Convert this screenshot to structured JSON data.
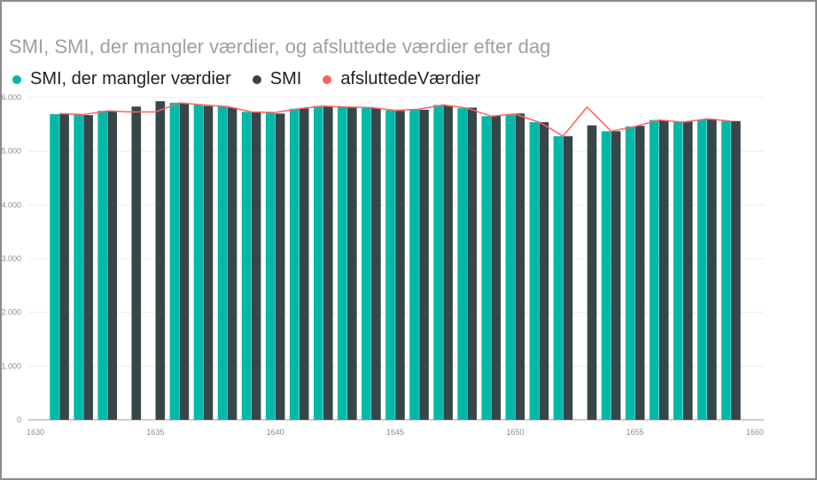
{
  "chart_data": {
    "type": "bar",
    "title": "SMI, SMI, der mangler værdier, og afsluttede værdier efter dag",
    "x": [
      1631,
      1632,
      1633,
      1634,
      1635,
      1636,
      1637,
      1638,
      1639,
      1640,
      1641,
      1642,
      1643,
      1644,
      1645,
      1646,
      1647,
      1648,
      1649,
      1650,
      1651,
      1652,
      1653,
      1654,
      1655,
      1656,
      1657,
      1658,
      1659
    ],
    "x_ticks": [
      "1630",
      "1635",
      "1640",
      "1645",
      "1650",
      "1655",
      "1660"
    ],
    "x_tick_values": [
      1630,
      1635,
      1640,
      1645,
      1650,
      1655,
      1660
    ],
    "y_ticks": [
      "0",
      "1.000",
      "2.000",
      "3.000",
      "4.000",
      "5.000",
      "6.000"
    ],
    "y_tick_values": [
      0,
      1000,
      2000,
      3000,
      4000,
      5000,
      6000
    ],
    "ylim": [
      0,
      6000
    ],
    "xlim": [
      1630,
      1660
    ],
    "series": [
      {
        "name": "SMI, der mangler værdier",
        "type": "bar",
        "color": "#01B8AA",
        "values": [
          5690,
          5680,
          5750,
          null,
          null,
          5900,
          5860,
          5830,
          5730,
          5720,
          5790,
          5840,
          5820,
          5810,
          5760,
          5780,
          5860,
          5800,
          5650,
          5690,
          5540,
          5280,
          null,
          5370,
          5460,
          5580,
          5540,
          5590,
          5560
        ]
      },
      {
        "name": "SMI",
        "type": "bar",
        "color": "#374649",
        "values": [
          5700,
          5670,
          5740,
          5830,
          5930,
          5890,
          5840,
          5810,
          5720,
          5700,
          5800,
          5830,
          5820,
          5800,
          5750,
          5770,
          5850,
          5810,
          5660,
          5700,
          5540,
          5280,
          5480,
          5370,
          5470,
          5580,
          5550,
          5600,
          5560
        ]
      },
      {
        "name": "afsluttedeVærdier",
        "type": "line",
        "color": "#FD625E",
        "values": [
          5700,
          5680,
          5750,
          5730,
          5730,
          5900,
          5860,
          5830,
          5730,
          5720,
          5790,
          5840,
          5820,
          5810,
          5760,
          5780,
          5860,
          5800,
          5650,
          5690,
          5540,
          5280,
          5820,
          5370,
          5460,
          5580,
          5540,
          5600,
          5560
        ]
      }
    ],
    "grid": true,
    "legend": "top-left"
  }
}
